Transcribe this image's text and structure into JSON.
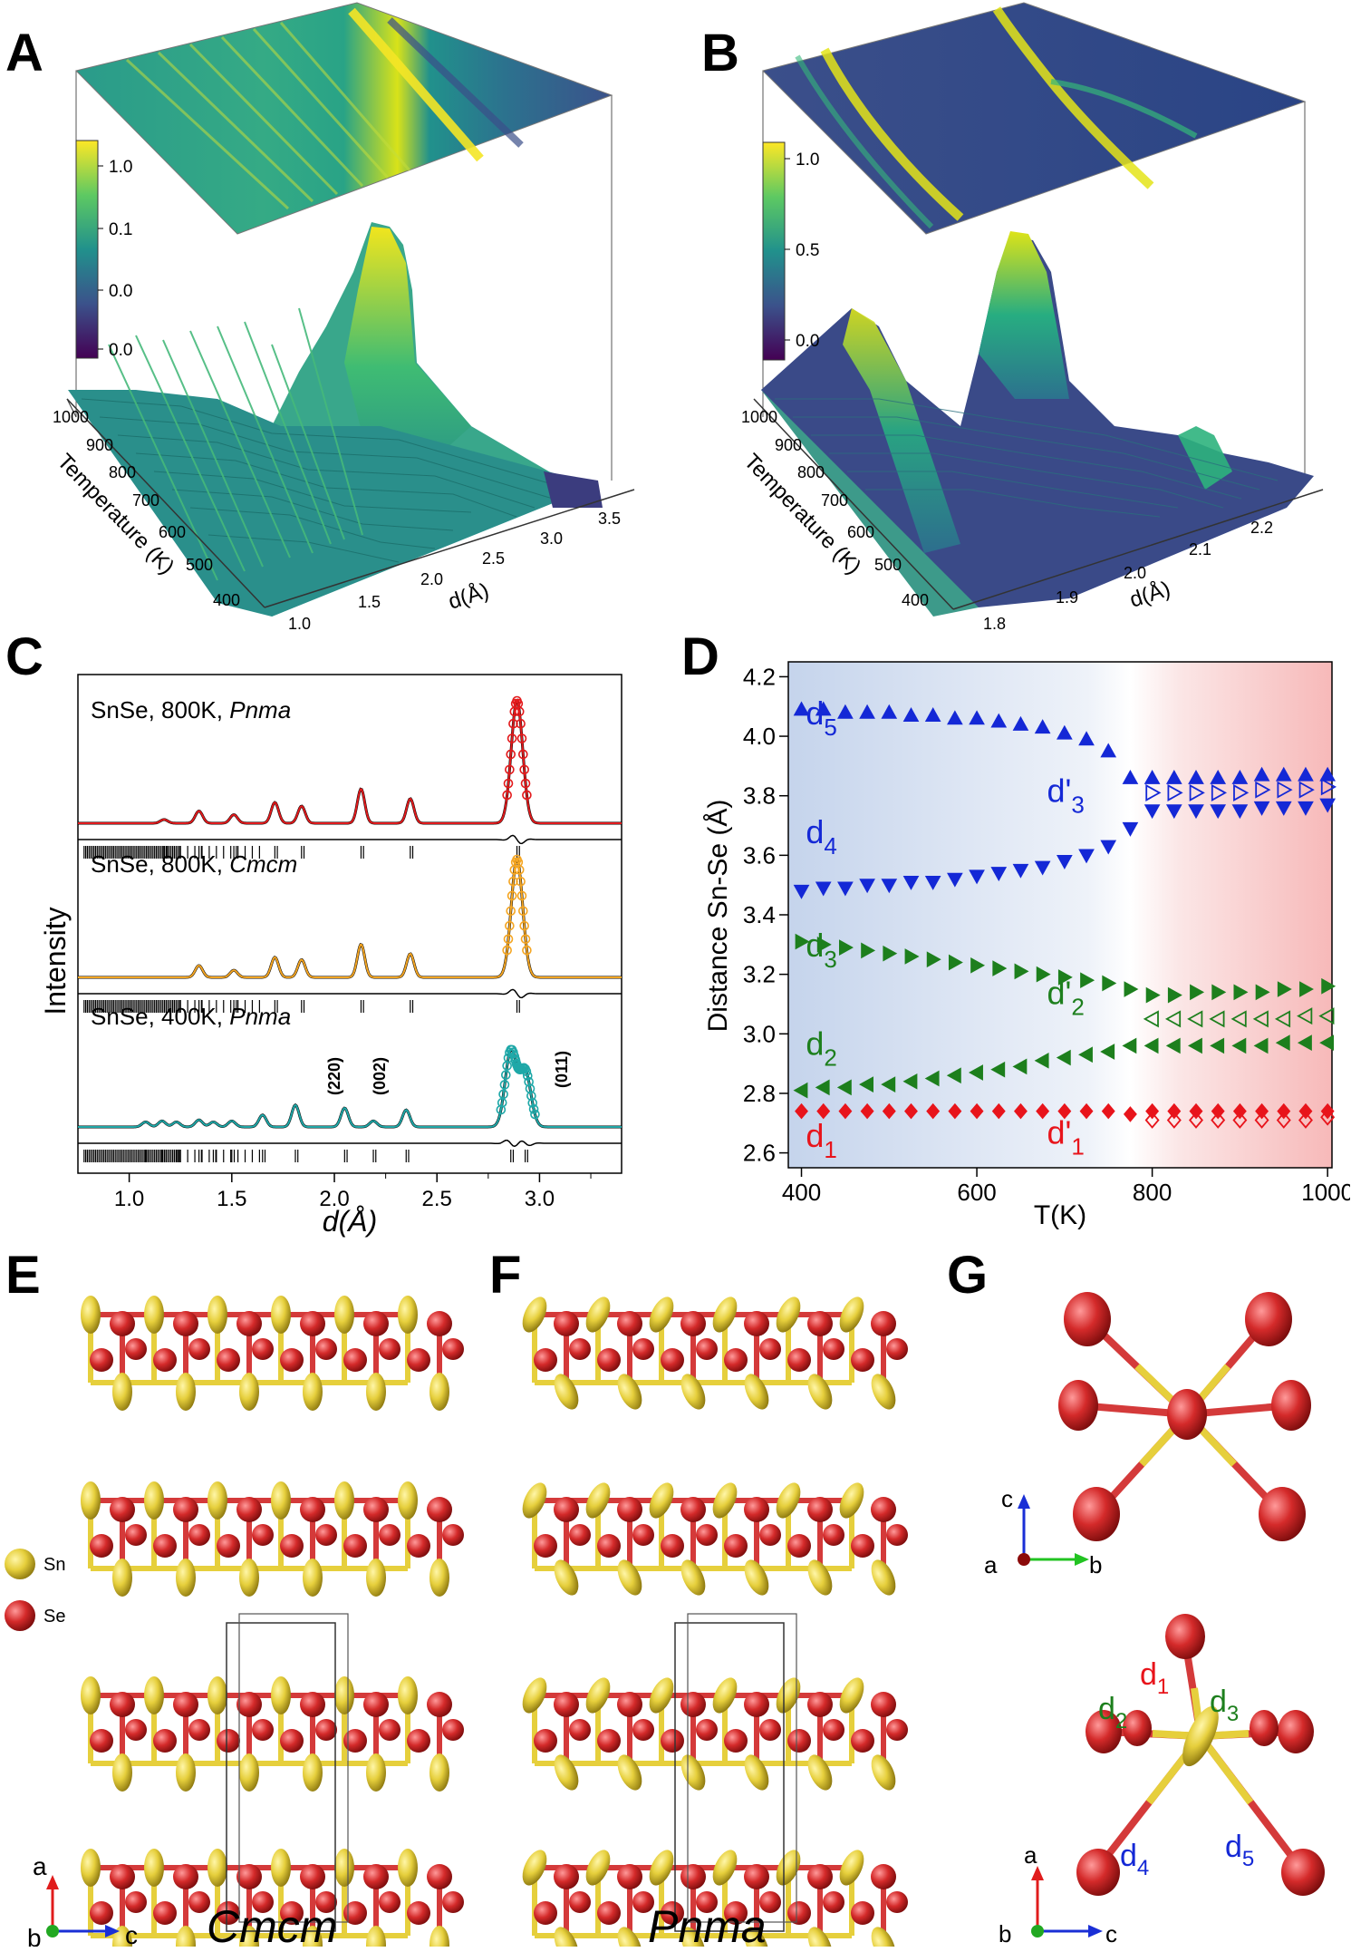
{
  "panels": {
    "A": "A",
    "B": "B",
    "C": "C",
    "D": "D",
    "E": "E",
    "F": "F",
    "G": "G"
  },
  "chart_data": [
    {
      "panel": "A",
      "type": "surface3d",
      "xlabel": "d(Å)",
      "ylabel": "Temperature (K)",
      "x_ticks": [
        "1.0",
        "1.5",
        "2.0",
        "2.5",
        "3.0",
        "3.5"
      ],
      "y_ticks": [
        "400",
        "500",
        "600",
        "700",
        "800",
        "900",
        "1000"
      ],
      "colorbar_ticks": [
        "1.0",
        "0.1",
        "0.0",
        "0.0"
      ],
      "colormap": "viridis"
    },
    {
      "panel": "B",
      "type": "surface3d",
      "xlabel": "d(Å)",
      "ylabel": "Temperature (K)",
      "x_ticks": [
        "1.8",
        "1.9",
        "2.0",
        "2.1",
        "2.2"
      ],
      "y_ticks": [
        "400",
        "500",
        "600",
        "700",
        "800",
        "900",
        "1000"
      ],
      "colorbar_ticks": [
        "1.0",
        "0.5",
        "0.0"
      ],
      "colormap": "viridis"
    },
    {
      "panel": "C",
      "type": "line",
      "xlabel": "d(Å)",
      "ylabel": "Intensity",
      "xlim": [
        0.75,
        3.4
      ],
      "x_ticks": [
        "1.0",
        "1.5",
        "2.0",
        "2.5",
        "3.0"
      ],
      "series": [
        {
          "label": "SnSe, 800K, ",
          "label_italic": "Pnma",
          "color": "#e31a1c",
          "peaks": [
            [
              1.17,
              0.03
            ],
            [
              1.34,
              0.1
            ],
            [
              1.51,
              0.07
            ],
            [
              1.71,
              0.17
            ],
            [
              1.84,
              0.14
            ],
            [
              2.13,
              0.28
            ],
            [
              2.37,
              0.2
            ],
            [
              2.89,
              1.0
            ]
          ]
        },
        {
          "label": "SnSe, 800K, ",
          "label_italic": "Cmcm",
          "color": "#f5a623",
          "peaks": [
            [
              1.34,
              0.1
            ],
            [
              1.51,
              0.06
            ],
            [
              1.71,
              0.17
            ],
            [
              1.84,
              0.15
            ],
            [
              2.13,
              0.28
            ],
            [
              2.37,
              0.2
            ],
            [
              2.89,
              1.0
            ]
          ]
        },
        {
          "label": "SnSe, 400K, ",
          "label_italic": "Pnma",
          "color": "#1fa8a8",
          "peaks": [
            [
              1.08,
              0.05
            ],
            [
              1.16,
              0.06
            ],
            [
              1.23,
              0.05
            ],
            [
              1.34,
              0.07
            ],
            [
              1.41,
              0.05
            ],
            [
              1.5,
              0.06
            ],
            [
              1.65,
              0.12
            ],
            [
              1.81,
              0.22
            ],
            [
              2.05,
              0.19
            ],
            [
              2.19,
              0.06
            ],
            [
              2.35,
              0.17
            ],
            [
              2.86,
              0.75
            ],
            [
              2.93,
              0.55
            ]
          ]
        }
      ],
      "annotations": [
        "(220)",
        "(002)",
        "(011)"
      ]
    },
    {
      "panel": "D",
      "type": "scatter",
      "xlabel": "T(K)",
      "ylabel": "Distance Sn-Se (Å)",
      "xlim": [
        385,
        1005
      ],
      "ylim": [
        2.55,
        4.25
      ],
      "x_ticks": [
        400,
        600,
        800,
        1000
      ],
      "y_ticks": [
        2.6,
        2.8,
        3.0,
        3.2,
        3.4,
        3.6,
        3.8,
        4.0,
        4.2
      ],
      "series": [
        {
          "name": "d5",
          "marker": "triangle-up",
          "color": "#1428d6",
          "filled": true,
          "x": [
            400,
            425,
            450,
            475,
            500,
            525,
            550,
            575,
            600,
            625,
            650,
            675,
            700,
            725,
            750,
            775
          ],
          "y": [
            4.09,
            4.09,
            4.08,
            4.08,
            4.08,
            4.07,
            4.07,
            4.06,
            4.06,
            4.05,
            4.04,
            4.03,
            4.01,
            3.99,
            3.95,
            3.86
          ]
        },
        {
          "name": "d4",
          "marker": "triangle-down",
          "color": "#1428d6",
          "filled": true,
          "x": [
            400,
            425,
            450,
            475,
            500,
            525,
            550,
            575,
            600,
            625,
            650,
            675,
            700,
            725,
            750,
            775
          ],
          "y": [
            3.48,
            3.49,
            3.49,
            3.5,
            3.5,
            3.51,
            3.51,
            3.52,
            3.53,
            3.54,
            3.55,
            3.56,
            3.58,
            3.6,
            3.63,
            3.69
          ]
        },
        {
          "name": "d3",
          "marker": "triangle-right",
          "color": "#1d7f1d",
          "filled": true,
          "x": [
            400,
            425,
            450,
            475,
            500,
            525,
            550,
            575,
            600,
            625,
            650,
            675,
            700,
            725,
            750,
            775
          ],
          "y": [
            3.31,
            3.3,
            3.29,
            3.28,
            3.27,
            3.26,
            3.25,
            3.24,
            3.23,
            3.22,
            3.21,
            3.2,
            3.19,
            3.18,
            3.17,
            3.15
          ]
        },
        {
          "name": "d2",
          "marker": "triangle-left",
          "color": "#1d7f1d",
          "filled": true,
          "x": [
            400,
            425,
            450,
            475,
            500,
            525,
            550,
            575,
            600,
            625,
            650,
            675,
            700,
            725,
            750,
            775
          ],
          "y": [
            2.81,
            2.82,
            2.82,
            2.83,
            2.83,
            2.84,
            2.85,
            2.86,
            2.87,
            2.88,
            2.89,
            2.91,
            2.92,
            2.93,
            2.94,
            2.96
          ]
        },
        {
          "name": "d1",
          "marker": "diamond",
          "color": "#e8141b",
          "filled": true,
          "x": [
            400,
            425,
            450,
            475,
            500,
            525,
            550,
            575,
            600,
            625,
            650,
            675,
            700,
            725,
            750,
            775
          ],
          "y": [
            2.74,
            2.74,
            2.74,
            2.74,
            2.74,
            2.74,
            2.74,
            2.74,
            2.74,
            2.74,
            2.74,
            2.74,
            2.74,
            2.74,
            2.74,
            2.73
          ]
        },
        {
          "name": "d5 (T>800)",
          "marker": "triangle-up",
          "color": "#1428d6",
          "filled": true,
          "x": [
            800,
            825,
            850,
            875,
            900,
            925,
            950,
            975,
            1000
          ],
          "y": [
            3.86,
            3.86,
            3.86,
            3.86,
            3.86,
            3.87,
            3.87,
            3.87,
            3.87
          ]
        },
        {
          "name": "d'3",
          "marker": "triangle-right",
          "color": "#1428d6",
          "filled": false,
          "x": [
            800,
            825,
            850,
            875,
            900,
            925,
            950,
            975,
            1000
          ],
          "y": [
            3.81,
            3.81,
            3.81,
            3.81,
            3.81,
            3.82,
            3.82,
            3.82,
            3.83
          ]
        },
        {
          "name": "d4 (T>800)",
          "marker": "triangle-down",
          "color": "#1428d6",
          "filled": true,
          "x": [
            800,
            825,
            850,
            875,
            900,
            925,
            950,
            975,
            1000
          ],
          "y": [
            3.75,
            3.75,
            3.75,
            3.75,
            3.75,
            3.76,
            3.76,
            3.76,
            3.77
          ]
        },
        {
          "name": "d3 (T>800)",
          "marker": "triangle-right",
          "color": "#1d7f1d",
          "filled": true,
          "x": [
            800,
            825,
            850,
            875,
            900,
            925,
            950,
            975,
            1000
          ],
          "y": [
            3.13,
            3.13,
            3.14,
            3.14,
            3.14,
            3.14,
            3.15,
            3.15,
            3.16
          ]
        },
        {
          "name": "d'2",
          "marker": "triangle-left",
          "color": "#1d7f1d",
          "filled": false,
          "x": [
            800,
            825,
            850,
            875,
            900,
            925,
            950,
            975,
            1000
          ],
          "y": [
            3.05,
            3.05,
            3.05,
            3.05,
            3.05,
            3.05,
            3.05,
            3.06,
            3.06
          ]
        },
        {
          "name": "d2 (T>800)",
          "marker": "triangle-left",
          "color": "#1d7f1d",
          "filled": true,
          "x": [
            800,
            825,
            850,
            875,
            900,
            925,
            950,
            975,
            1000
          ],
          "y": [
            2.96,
            2.96,
            2.96,
            2.96,
            2.96,
            2.96,
            2.97,
            2.97,
            2.97
          ]
        },
        {
          "name": "d1 (T>800)",
          "marker": "diamond",
          "color": "#e8141b",
          "filled": true,
          "x": [
            800,
            825,
            850,
            875,
            900,
            925,
            950,
            975,
            1000
          ],
          "y": [
            2.74,
            2.74,
            2.74,
            2.74,
            2.74,
            2.74,
            2.74,
            2.74,
            2.74
          ]
        },
        {
          "name": "d'1",
          "marker": "diamond",
          "color": "#e8141b",
          "filled": false,
          "x": [
            800,
            825,
            850,
            875,
            900,
            925,
            950,
            975,
            1000
          ],
          "y": [
            2.71,
            2.71,
            2.71,
            2.71,
            2.71,
            2.71,
            2.71,
            2.71,
            2.72
          ]
        }
      ],
      "labels": [
        {
          "base": "d",
          "sub": "5",
          "color": "#1428d6",
          "x": 405,
          "y": 4.04
        },
        {
          "base": "d",
          "sub": "4",
          "color": "#1428d6",
          "x": 405,
          "y": 3.64
        },
        {
          "base": "d",
          "sub": "3",
          "color": "#1d7f1d",
          "x": 405,
          "y": 3.26
        },
        {
          "base": "d",
          "sub": "2",
          "color": "#1d7f1d",
          "x": 405,
          "y": 2.93
        },
        {
          "base": "d",
          "sub": "1",
          "color": "#e8141b",
          "x": 405,
          "y": 2.62
        },
        {
          "base": "d'",
          "sub": "3",
          "color": "#1428d6",
          "x": 680,
          "y": 3.78
        },
        {
          "base": "d'",
          "sub": "2",
          "color": "#1d7f1d",
          "x": 680,
          "y": 3.1
        },
        {
          "base": "d'",
          "sub": "1",
          "color": "#e8141b",
          "x": 680,
          "y": 2.63
        }
      ]
    }
  ],
  "structures": {
    "legend": {
      "sn": "Sn",
      "se": "Se"
    },
    "E_label": "Cmcm",
    "F_label": "Pnma",
    "axes_E": {
      "a": "a",
      "b": "b",
      "c": "c"
    },
    "axes_F": {
      "a": "a",
      "b": "b",
      "c": "c"
    },
    "G_top_axes": {
      "a": "a",
      "b": "b",
      "c": "c"
    },
    "G_bottom_axes": {
      "a": "a",
      "b": "b",
      "c": "c"
    },
    "G_labels": [
      {
        "base": "d",
        "sub": "1",
        "color": "#e8141b"
      },
      {
        "base": "d",
        "sub": "2",
        "color": "#1d7f1d"
      },
      {
        "base": "d",
        "sub": "3",
        "color": "#1d7f1d"
      },
      {
        "base": "d",
        "sub": "4",
        "color": "#1428d6"
      },
      {
        "base": "d",
        "sub": "5",
        "color": "#1428d6"
      }
    ],
    "colors": {
      "sn": "#e6cf3c",
      "se": "#d42a2a"
    }
  }
}
